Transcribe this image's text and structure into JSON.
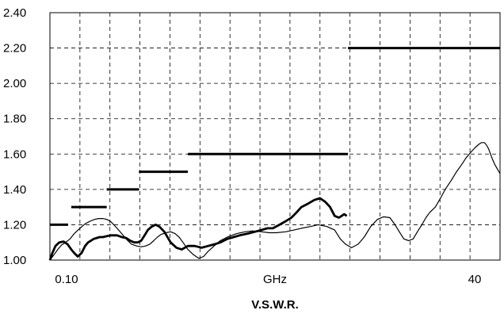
{
  "chart_data": {
    "type": "line",
    "title": "V.S.W.R.",
    "xlabel": "GHz",
    "x_tick_labels": [
      "0.10",
      "40"
    ],
    "x_scale": "log",
    "xlim": [
      0.085,
      50
    ],
    "ylim": [
      1.0,
      2.4
    ],
    "y_ticks": [
      "1.00",
      "1.20",
      "1.40",
      "1.60",
      "1.80",
      "2.00",
      "2.20",
      "2.40"
    ],
    "grid": true,
    "grid_style": "dashed",
    "series": [
      {
        "style": "thick",
        "x": [
          0.085,
          0.088,
          0.092,
          0.097,
          0.103,
          0.109,
          0.115,
          0.12,
          0.126,
          0.133,
          0.14,
          0.146,
          0.152,
          0.158,
          0.165,
          0.172,
          0.18,
          0.19,
          0.2,
          0.21,
          0.22,
          0.235,
          0.25,
          0.265,
          0.28,
          0.295,
          0.31,
          0.325,
          0.34,
          0.36,
          0.38,
          0.4,
          0.43,
          0.47,
          0.51,
          0.55,
          0.6,
          0.66,
          0.73,
          0.8,
          0.88,
          0.95,
          1.05,
          1.15,
          1.25,
          1.4,
          1.55,
          1.7,
          1.85,
          2.0,
          2.2,
          2.4,
          2.6,
          2.8,
          3.0,
          3.3,
          3.6,
          3.9,
          4.2,
          4.5,
          4.8,
          5.1,
          5.3,
          5.5,
          5.7
        ],
        "y": [
          1.0,
          1.04,
          1.08,
          1.1,
          1.105,
          1.09,
          1.06,
          1.04,
          1.02,
          1.04,
          1.08,
          1.1,
          1.11,
          1.12,
          1.125,
          1.13,
          1.13,
          1.135,
          1.14,
          1.14,
          1.14,
          1.13,
          1.125,
          1.11,
          1.1,
          1.1,
          1.11,
          1.14,
          1.17,
          1.19,
          1.2,
          1.19,
          1.16,
          1.1,
          1.07,
          1.06,
          1.08,
          1.08,
          1.07,
          1.08,
          1.09,
          1.1,
          1.12,
          1.13,
          1.14,
          1.15,
          1.16,
          1.17,
          1.18,
          1.18,
          1.2,
          1.22,
          1.24,
          1.27,
          1.3,
          1.32,
          1.34,
          1.35,
          1.33,
          1.3,
          1.25,
          1.24,
          1.25,
          1.26,
          1.25
        ]
      },
      {
        "style": "thin",
        "x": [
          0.085,
          0.09,
          0.095,
          0.1,
          0.106,
          0.113,
          0.12,
          0.13,
          0.14,
          0.15,
          0.16,
          0.17,
          0.18,
          0.19,
          0.2,
          0.21,
          0.22,
          0.235,
          0.25,
          0.27,
          0.29,
          0.31,
          0.33,
          0.35,
          0.37,
          0.39,
          0.41,
          0.44,
          0.47,
          0.5,
          0.53,
          0.56,
          0.6,
          0.65,
          0.7,
          0.75,
          0.8,
          0.87,
          0.95,
          1.05,
          1.2,
          1.35,
          1.5,
          1.7,
          1.9,
          2.1,
          2.4,
          2.7,
          3.0,
          3.4,
          3.8,
          4.3,
          4.8,
          5.2,
          5.6,
          6.1,
          6.7,
          7.3,
          8.0,
          8.8,
          9.6,
          10.5,
          11.3,
          12.0,
          12.8,
          13.7,
          14.6,
          15.5,
          16.5,
          17.5,
          18.5,
          20.0,
          21.5,
          23.0,
          25.0,
          27.0,
          29.0,
          31.0,
          33.0,
          35.0,
          37.0,
          38.5,
          40.0,
          41.0,
          42.5,
          44.5,
          46.5,
          48.5,
          50.0
        ],
        "y": [
          1.0,
          1.03,
          1.06,
          1.085,
          1.1,
          1.12,
          1.15,
          1.18,
          1.205,
          1.22,
          1.23,
          1.235,
          1.235,
          1.23,
          1.22,
          1.2,
          1.18,
          1.15,
          1.12,
          1.09,
          1.08,
          1.075,
          1.08,
          1.09,
          1.11,
          1.13,
          1.145,
          1.155,
          1.16,
          1.15,
          1.13,
          1.1,
          1.06,
          1.03,
          1.01,
          1.02,
          1.05,
          1.08,
          1.11,
          1.13,
          1.15,
          1.16,
          1.165,
          1.16,
          1.155,
          1.155,
          1.16,
          1.17,
          1.18,
          1.19,
          1.2,
          1.19,
          1.17,
          1.12,
          1.09,
          1.07,
          1.09,
          1.13,
          1.19,
          1.23,
          1.245,
          1.24,
          1.2,
          1.16,
          1.12,
          1.11,
          1.12,
          1.16,
          1.2,
          1.24,
          1.27,
          1.3,
          1.35,
          1.4,
          1.45,
          1.5,
          1.54,
          1.58,
          1.61,
          1.635,
          1.655,
          1.665,
          1.665,
          1.655,
          1.63,
          1.58,
          1.54,
          1.51,
          1.49
        ]
      }
    ],
    "limit_lines": [
      {
        "x": [
          0.085,
          0.11
        ],
        "y": 1.2
      },
      {
        "x": [
          0.115,
          0.19
        ],
        "y": 1.3
      },
      {
        "x": [
          0.19,
          0.3
        ],
        "y": 1.4
      },
      {
        "x": [
          0.3,
          0.6
        ],
        "y": 1.5
      },
      {
        "x": [
          0.6,
          5.8
        ],
        "y": 1.6
      },
      {
        "x": [
          5.8,
          50.0
        ],
        "y": 2.2
      }
    ]
  }
}
